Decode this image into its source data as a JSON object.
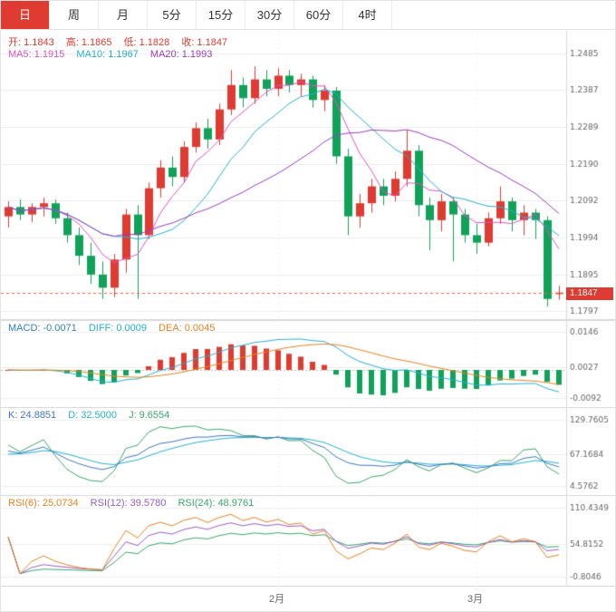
{
  "tabs": [
    {
      "label": "日",
      "active": true
    },
    {
      "label": "周",
      "active": false
    },
    {
      "label": "月",
      "active": false
    },
    {
      "label": "5分",
      "active": false
    },
    {
      "label": "15分",
      "active": false
    },
    {
      "label": "30分",
      "active": false
    },
    {
      "label": "60分",
      "active": false
    },
    {
      "label": "4时",
      "active": false
    }
  ],
  "main": {
    "ohlc": {
      "open_label": "开:",
      "open": "1.1843",
      "high_label": "高:",
      "high": "1.1865",
      "low_label": "低:",
      "low": "1.1828",
      "close_label": "收:",
      "close": "1.1847"
    },
    "ma5": {
      "label": "MA5:",
      "value": "1.1915",
      "color": "#e052c4"
    },
    "ma10": {
      "label": "MA10:",
      "value": "1.1967",
      "color": "#22b1d4"
    },
    "ma20": {
      "label": "MA20:",
      "value": "1.1993",
      "color": "#9a3bbf"
    },
    "price_marker": "1.1847",
    "y_ticks": [
      "1.2485",
      "1.2387",
      "1.2289",
      "1.2190",
      "1.2092",
      "1.1994",
      "1.1895",
      "1.1797"
    ]
  },
  "macd": {
    "macd_item": {
      "label": "MACD:",
      "value": "-0.0071",
      "color": "#2f7fc1"
    },
    "diff_item": {
      "label": "DIFF:",
      "value": "0.0009",
      "color": "#22b1d4"
    },
    "dea_item": {
      "label": "DEA:",
      "value": "0.0045",
      "color": "#e8821e"
    },
    "y_ticks": [
      "0.0146",
      "0.0027",
      "-0.0092"
    ]
  },
  "kdj": {
    "k_item": {
      "label": "K:",
      "value": "24.8851",
      "color": "#3f76c0"
    },
    "d_item": {
      "label": "D:",
      "value": "32.5000",
      "color": "#22b1d4"
    },
    "j_item": {
      "label": "J:",
      "value": "9.6554",
      "color": "#37a86a"
    },
    "y_ticks": [
      "129.7605",
      "67.1684",
      "4.5762"
    ]
  },
  "rsi": {
    "r6_item": {
      "label": "RSI(6):",
      "value": "25.0734",
      "color": "#e8821e"
    },
    "r12_item": {
      "label": "RSI(12):",
      "value": "39.5780",
      "color": "#9a5cc4"
    },
    "r24_item": {
      "label": "RSI(24):",
      "value": "48.9761",
      "color": "#37a86a"
    },
    "y_ticks": [
      "110.4349",
      "54.8152",
      "-0.8046"
    ]
  },
  "colors": {
    "accent_red": "#e03b30",
    "up": "#e03b30",
    "down": "#11a25a",
    "ma5": "#e052c4",
    "ma10": "#22b1d4",
    "ma20": "#9a3bbf",
    "diff": "#22b1d4",
    "dea": "#e8821e",
    "k": "#3f76c0",
    "d": "#22b1d4",
    "j": "#37a86a",
    "rsi6": "#e8821e",
    "rsi12": "#9a5cc4",
    "rsi24": "#37a86a",
    "price_line": "#f06338",
    "grid": "#ececec",
    "axis_text": "#666666",
    "border": "#d9d9d9"
  },
  "chart_data": {
    "type": "candlestick",
    "panels": [
      "price with MA5/MA10/MA20",
      "MACD(12,26,9)",
      "KDJ(9,3,3)",
      "RSI(6,12,24)"
    ],
    "ohlc": [
      [
        1.205,
        1.209,
        1.202,
        1.2075
      ],
      [
        1.2075,
        1.2095,
        1.204,
        1.2055
      ],
      [
        1.2055,
        1.2085,
        1.2035,
        1.2075
      ],
      [
        1.2075,
        1.21,
        1.205,
        1.2085
      ],
      [
        1.2085,
        1.2095,
        1.203,
        1.2045
      ],
      [
        1.2045,
        1.206,
        1.198,
        1.2
      ],
      [
        1.2,
        1.202,
        1.192,
        1.1945
      ],
      [
        1.1945,
        1.198,
        1.187,
        1.1895
      ],
      [
        1.1895,
        1.193,
        1.183,
        1.186
      ],
      [
        1.186,
        1.195,
        1.1835,
        1.1935
      ],
      [
        1.1935,
        1.207,
        1.19,
        1.2055
      ],
      [
        1.2055,
        1.208,
        1.183,
        1.2
      ],
      [
        1.2,
        1.214,
        1.199,
        1.2125
      ],
      [
        1.2125,
        1.22,
        1.21,
        1.218
      ],
      [
        1.218,
        1.221,
        1.213,
        1.2155
      ],
      [
        1.2155,
        1.225,
        1.214,
        1.2235
      ],
      [
        1.2235,
        1.23,
        1.222,
        1.2285
      ],
      [
        1.2285,
        1.231,
        1.223,
        1.2255
      ],
      [
        1.2255,
        1.235,
        1.224,
        1.2335
      ],
      [
        1.2335,
        1.244,
        1.232,
        1.24
      ],
      [
        1.24,
        1.242,
        1.234,
        1.2365
      ],
      [
        1.2365,
        1.245,
        1.235,
        1.2415
      ],
      [
        1.2415,
        1.244,
        1.237,
        1.239
      ],
      [
        1.239,
        1.2445,
        1.237,
        1.2425
      ],
      [
        1.2425,
        1.244,
        1.238,
        1.24
      ],
      [
        1.24,
        1.243,
        1.237,
        1.2415
      ],
      [
        1.2415,
        1.2425,
        1.234,
        1.236
      ],
      [
        1.236,
        1.24,
        1.233,
        1.2385
      ],
      [
        1.2385,
        1.2395,
        1.219,
        1.221
      ],
      [
        1.221,
        1.223,
        1.2,
        1.205
      ],
      [
        1.205,
        1.211,
        1.202,
        1.2085
      ],
      [
        1.2085,
        1.215,
        1.206,
        1.213
      ],
      [
        1.213,
        1.215,
        1.208,
        1.2105
      ],
      [
        1.2105,
        1.217,
        1.209,
        1.215
      ],
      [
        1.215,
        1.228,
        1.213,
        1.2225
      ],
      [
        1.2225,
        1.224,
        1.205,
        1.208
      ],
      [
        1.208,
        1.21,
        1.196,
        1.204
      ],
      [
        1.204,
        1.211,
        1.201,
        1.209
      ],
      [
        1.209,
        1.21,
        1.193,
        1.2055
      ],
      [
        1.2055,
        1.207,
        1.198,
        1.2
      ],
      [
        1.2,
        1.203,
        1.195,
        1.198
      ],
      [
        1.198,
        1.206,
        1.197,
        1.2045
      ],
      [
        1.2045,
        1.213,
        1.203,
        1.209
      ],
      [
        1.209,
        1.21,
        1.201,
        1.204
      ],
      [
        1.204,
        1.208,
        1.2,
        1.206
      ],
      [
        1.206,
        1.207,
        1.199,
        1.204
      ],
      [
        1.204,
        1.205,
        1.181,
        1.183
      ],
      [
        1.1843,
        1.1865,
        1.1828,
        1.1847
      ]
    ],
    "x_month_labels": [
      {
        "label": "2月",
        "index": 23
      },
      {
        "label": "3月",
        "index": 40
      }
    ],
    "price_axis_ticks": [
      1.2485,
      1.2387,
      1.2289,
      1.219,
      1.2092,
      1.1994,
      1.1895,
      1.1797
    ],
    "current_price": 1.1847,
    "latest": {
      "open": 1.1843,
      "high": 1.1865,
      "low": 1.1828,
      "close": 1.1847,
      "MA5": 1.1915,
      "MA10": 1.1967,
      "MA20": 1.1993,
      "MACD": -0.0071,
      "DIFF": 0.0009,
      "DEA": 0.0045,
      "K": 24.8851,
      "D": 32.5,
      "J": 9.6554,
      "RSI6": 25.0734,
      "RSI12": 39.578,
      "RSI24": 48.9761
    }
  }
}
